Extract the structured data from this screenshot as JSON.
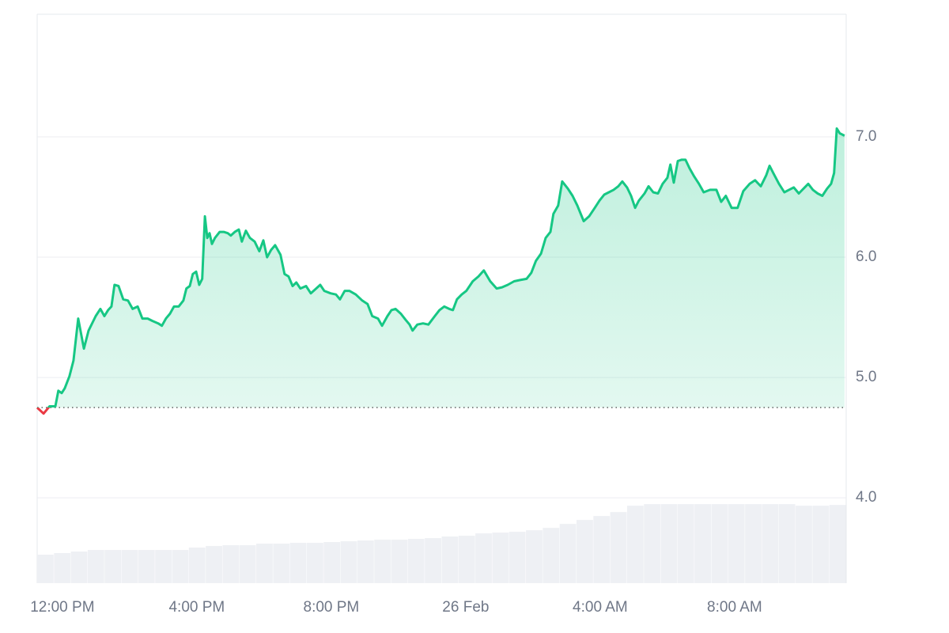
{
  "chart_data": {
    "type": "line",
    "x": [
      -0.75,
      -0.56,
      -0.38,
      -0.21,
      -0.12,
      -0.02,
      0.07,
      0.21,
      0.33,
      0.47,
      0.64,
      0.78,
      0.92,
      0.99,
      1.13,
      1.25,
      1.36,
      1.46,
      1.55,
      1.67,
      1.81,
      1.95,
      2.09,
      2.24,
      2.38,
      2.54,
      2.68,
      2.85,
      2.96,
      3.08,
      3.2,
      3.32,
      3.46,
      3.6,
      3.69,
      3.79,
      3.88,
      3.98,
      4.07,
      4.16,
      4.24,
      4.31,
      4.38,
      4.45,
      4.54,
      4.68,
      4.8,
      4.92,
      5.01,
      5.13,
      5.25,
      5.34,
      5.46,
      5.58,
      5.72,
      5.86,
      5.98,
      6.09,
      6.21,
      6.33,
      6.49,
      6.61,
      6.73,
      6.85,
      6.96,
      7.08,
      7.25,
      7.39,
      7.55,
      7.67,
      7.79,
      7.98,
      8.14,
      8.26,
      8.4,
      8.54,
      8.73,
      8.92,
      9.08,
      9.22,
      9.39,
      9.51,
      9.67,
      9.79,
      9.91,
      10.07,
      10.21,
      10.33,
      10.42,
      10.56,
      10.73,
      10.89,
      11.08,
      11.22,
      11.36,
      11.51,
      11.62,
      11.74,
      11.88,
      12.02,
      12.21,
      12.38,
      12.54,
      12.73,
      12.92,
      13.08,
      13.25,
      13.44,
      13.62,
      13.81,
      13.95,
      14.09,
      14.24,
      14.38,
      14.52,
      14.61,
      14.75,
      14.87,
      15.04,
      15.18,
      15.32,
      15.51,
      15.67,
      15.84,
      15.98,
      16.12,
      16.26,
      16.4,
      16.54,
      16.66,
      16.8,
      16.92,
      17.04,
      17.15,
      17.32,
      17.44,
      17.58,
      17.72,
      17.86,
      18.0,
      18.09,
      18.19,
      18.31,
      18.42,
      18.54,
      18.66,
      18.8,
      18.94,
      19.08,
      19.27,
      19.46,
      19.6,
      19.74,
      19.91,
      20.09,
      20.26,
      20.45,
      20.61,
      20.78,
      20.94,
      21.04,
      21.15,
      21.32,
      21.48,
      21.62,
      21.76,
      21.91,
      22.05,
      22.19,
      22.33,
      22.47,
      22.61,
      22.75,
      22.87,
      22.96,
      23.04,
      23.13,
      23.27
    ],
    "series": [
      {
        "color": "#16c784",
        "down_color": "#ea3943",
        "values": [
          4.75,
          4.7,
          4.76,
          4.76,
          4.89,
          4.87,
          4.91,
          5.01,
          5.14,
          5.49,
          5.24,
          5.39,
          5.47,
          5.51,
          5.57,
          5.51,
          5.56,
          5.59,
          5.77,
          5.76,
          5.65,
          5.64,
          5.57,
          5.59,
          5.49,
          5.49,
          5.47,
          5.45,
          5.43,
          5.49,
          5.53,
          5.59,
          5.59,
          5.64,
          5.74,
          5.76,
          5.86,
          5.88,
          5.77,
          5.82,
          6.34,
          6.16,
          6.2,
          6.11,
          6.16,
          6.21,
          6.21,
          6.2,
          6.18,
          6.21,
          6.23,
          6.13,
          6.22,
          6.16,
          6.13,
          6.05,
          6.14,
          6.0,
          6.06,
          6.1,
          6.02,
          5.86,
          5.84,
          5.76,
          5.79,
          5.74,
          5.76,
          5.7,
          5.74,
          5.77,
          5.72,
          5.7,
          5.69,
          5.65,
          5.72,
          5.72,
          5.69,
          5.64,
          5.61,
          5.51,
          5.49,
          5.43,
          5.51,
          5.56,
          5.57,
          5.53,
          5.48,
          5.44,
          5.39,
          5.44,
          5.45,
          5.44,
          5.51,
          5.56,
          5.59,
          5.57,
          5.56,
          5.65,
          5.69,
          5.72,
          5.8,
          5.84,
          5.89,
          5.8,
          5.74,
          5.75,
          5.77,
          5.8,
          5.81,
          5.82,
          5.87,
          5.97,
          6.03,
          6.16,
          6.21,
          6.36,
          6.43,
          6.63,
          6.57,
          6.51,
          6.43,
          6.3,
          6.34,
          6.41,
          6.47,
          6.52,
          6.54,
          6.56,
          6.59,
          6.63,
          6.58,
          6.51,
          6.41,
          6.47,
          6.53,
          6.59,
          6.54,
          6.53,
          6.61,
          6.66,
          6.77,
          6.62,
          6.8,
          6.81,
          6.81,
          6.74,
          6.67,
          6.61,
          6.54,
          6.56,
          6.56,
          6.46,
          6.51,
          6.41,
          6.41,
          6.55,
          6.61,
          6.64,
          6.59,
          6.68,
          6.76,
          6.7,
          6.61,
          6.54,
          6.56,
          6.58,
          6.53,
          6.57,
          6.61,
          6.56,
          6.53,
          6.51,
          6.57,
          6.61,
          6.7,
          7.07,
          7.03,
          7.01
        ]
      }
    ],
    "volume": {
      "color": "#eef0f4",
      "values": [
        36,
        38,
        40,
        42,
        42,
        42,
        42,
        42,
        42,
        45,
        47,
        48,
        48,
        50,
        50,
        51,
        51,
        52,
        53,
        54,
        55,
        55,
        56,
        57,
        59,
        60,
        63,
        64,
        65,
        67,
        70,
        75,
        80,
        85,
        90,
        98,
        100,
        100,
        100,
        100,
        100,
        100,
        100,
        100,
        100,
        98,
        98,
        99
      ]
    },
    "y2lim": [
      0,
      720
    ],
    "xlim": [
      -0.75,
      23.32
    ],
    "xticks": [
      {
        "value": 0,
        "label": "12:00 PM"
      },
      {
        "value": 4,
        "label": "4:00 PM"
      },
      {
        "value": 8,
        "label": "8:00 PM"
      },
      {
        "value": 12,
        "label": "26 Feb"
      },
      {
        "value": 16,
        "label": "4:00 AM"
      },
      {
        "value": 20,
        "label": "8:00 AM"
      }
    ],
    "ylim": [
      3.29,
      8.02
    ],
    "yticks": [
      {
        "value": 4,
        "label": "4.0"
      },
      {
        "value": 5,
        "label": "5.0"
      },
      {
        "value": 6,
        "label": "6.0"
      },
      {
        "value": 7,
        "label": "7.0"
      }
    ],
    "grid": true
  }
}
